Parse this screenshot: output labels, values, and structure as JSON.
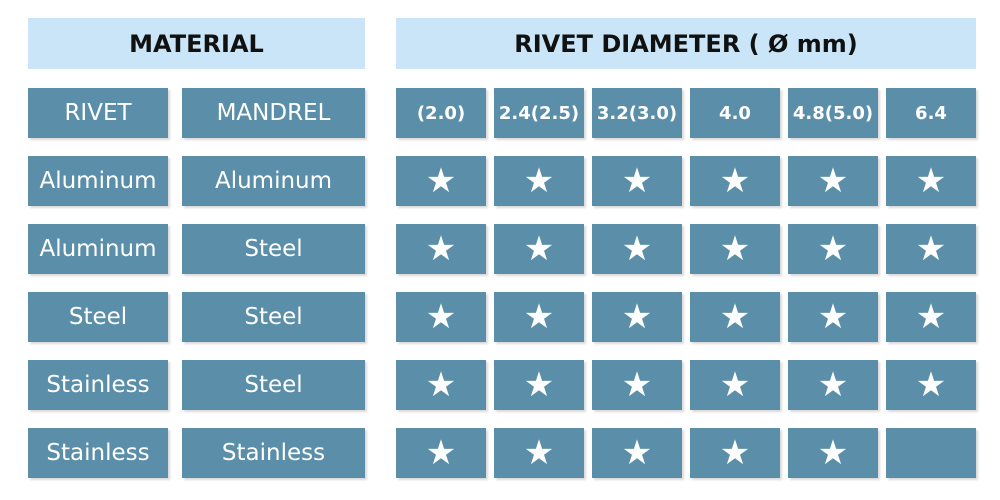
{
  "header": {
    "material": "MATERIAL",
    "diameter": "RIVET DIAMETER ( Ø mm)"
  },
  "columns": [
    "RIVET",
    "MANDREL",
    "(2.0)",
    "2.4(2.5)",
    "3.2(3.0)",
    "4.0",
    "4.8(5.0)",
    "6.4"
  ],
  "rows": [
    {
      "rivet": "Aluminum",
      "mandrel": "Aluminum",
      "available": [
        true,
        true,
        true,
        true,
        true,
        true
      ]
    },
    {
      "rivet": "Aluminum",
      "mandrel": "Steel",
      "available": [
        true,
        true,
        true,
        true,
        true,
        true
      ]
    },
    {
      "rivet": "Steel",
      "mandrel": "Steel",
      "available": [
        true,
        true,
        true,
        true,
        true,
        true
      ]
    },
    {
      "rivet": "Stainless",
      "mandrel": "Steel",
      "available": [
        true,
        true,
        true,
        true,
        true,
        true
      ]
    },
    {
      "rivet": "Stainless",
      "mandrel": "Stainless",
      "available": [
        true,
        true,
        true,
        true,
        true,
        false
      ]
    }
  ]
}
